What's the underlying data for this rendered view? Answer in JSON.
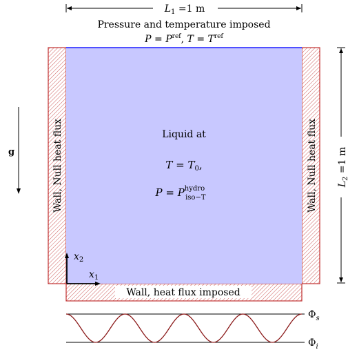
{
  "dimension_top": {
    "symbol": "L",
    "subscript": "1",
    "value": " =1 m"
  },
  "dimension_right": {
    "symbol": "L",
    "subscript": "2",
    "value": " =1 m"
  },
  "top_boundary": {
    "line1": "Pressure and temperature imposed",
    "p": "P",
    "eq": " = ",
    "p_base": "P",
    "p_sup": "ref",
    "sep": ", ",
    "t": "T",
    "t_base": "T",
    "t_sup": "ref"
  },
  "gravity": {
    "label": "g"
  },
  "left_wall": {
    "label": "Wall, Null heat flux"
  },
  "right_wall": {
    "label": "Wall, Null heat flux"
  },
  "bottom_wall": {
    "label": "Wall, heat flux imposed"
  },
  "liquid": {
    "title": "Liquid at",
    "t_sym": "T",
    "eq": " = ",
    "t0_base": "T",
    "t0_sub": "0",
    "t_tail": ",",
    "p_sym": "P",
    "p_base": "P",
    "p_sup": "hydro",
    "p_sub": "iso−T"
  },
  "axes": {
    "x1": "x",
    "x1_sub": "1",
    "x2": "x",
    "x2_sub": "2"
  },
  "flux_labels": {
    "phi_s": "Φ",
    "phi_s_sub": "s",
    "phi_i": "Φ",
    "phi_i_sub": "i"
  },
  "colors": {
    "liquid_fill": "#c8c8ff",
    "wall_stroke": "#c03030",
    "top_boundary": "#1a1aff",
    "wave": "#8b1a1a"
  }
}
